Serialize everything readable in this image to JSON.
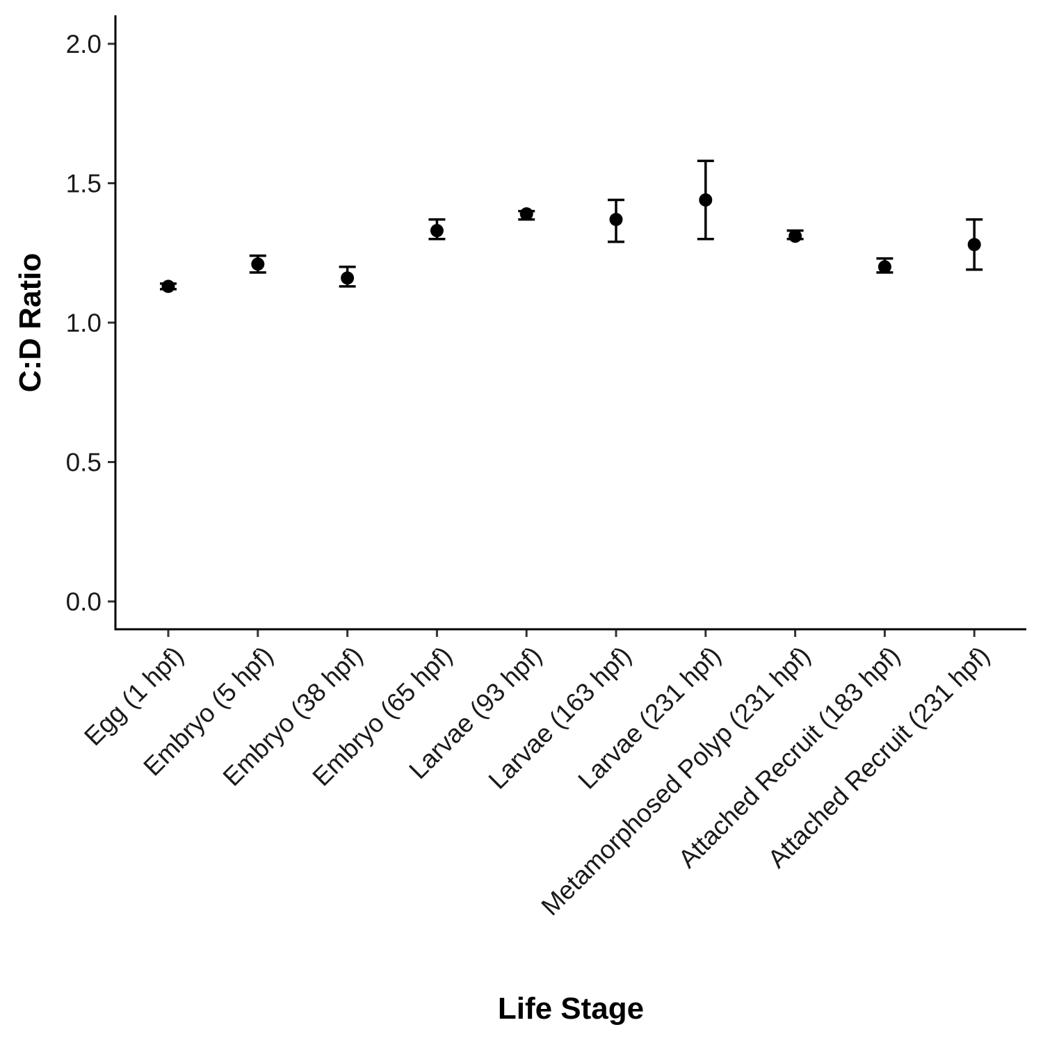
{
  "chart_data": {
    "type": "scatter",
    "title": "",
    "xlabel": "Life Stage",
    "ylabel": "C:D Ratio",
    "ylim": [
      -0.1,
      2.1
    ],
    "yticks": [
      0.0,
      0.5,
      1.0,
      1.5,
      2.0
    ],
    "ytick_labels": [
      "0.0",
      "0.5",
      "1.0",
      "1.5",
      "2.0"
    ],
    "grid": false,
    "legend": "none",
    "categories": [
      "Egg (1 hpf)",
      "Embryo (5 hpf)",
      "Embryo (38 hpf)",
      "Embryo (65 hpf)",
      "Larvae (93 hpf)",
      "Larvae (163 hpf)",
      "Larvae (231 hpf)",
      "Metamorphosed Polyp (231 hpf)",
      "Attached Recruit (183 hpf)",
      "Attached Recruit (231 hpf)"
    ],
    "values": [
      1.13,
      1.21,
      1.16,
      1.33,
      1.39,
      1.37,
      1.44,
      1.31,
      1.2,
      1.28
    ],
    "error_low": [
      1.12,
      1.18,
      1.13,
      1.3,
      1.37,
      1.29,
      1.3,
      1.3,
      1.18,
      1.19
    ],
    "error_high": [
      1.14,
      1.24,
      1.2,
      1.37,
      1.4,
      1.44,
      1.58,
      1.33,
      1.23,
      1.37
    ],
    "color": "#000000"
  }
}
